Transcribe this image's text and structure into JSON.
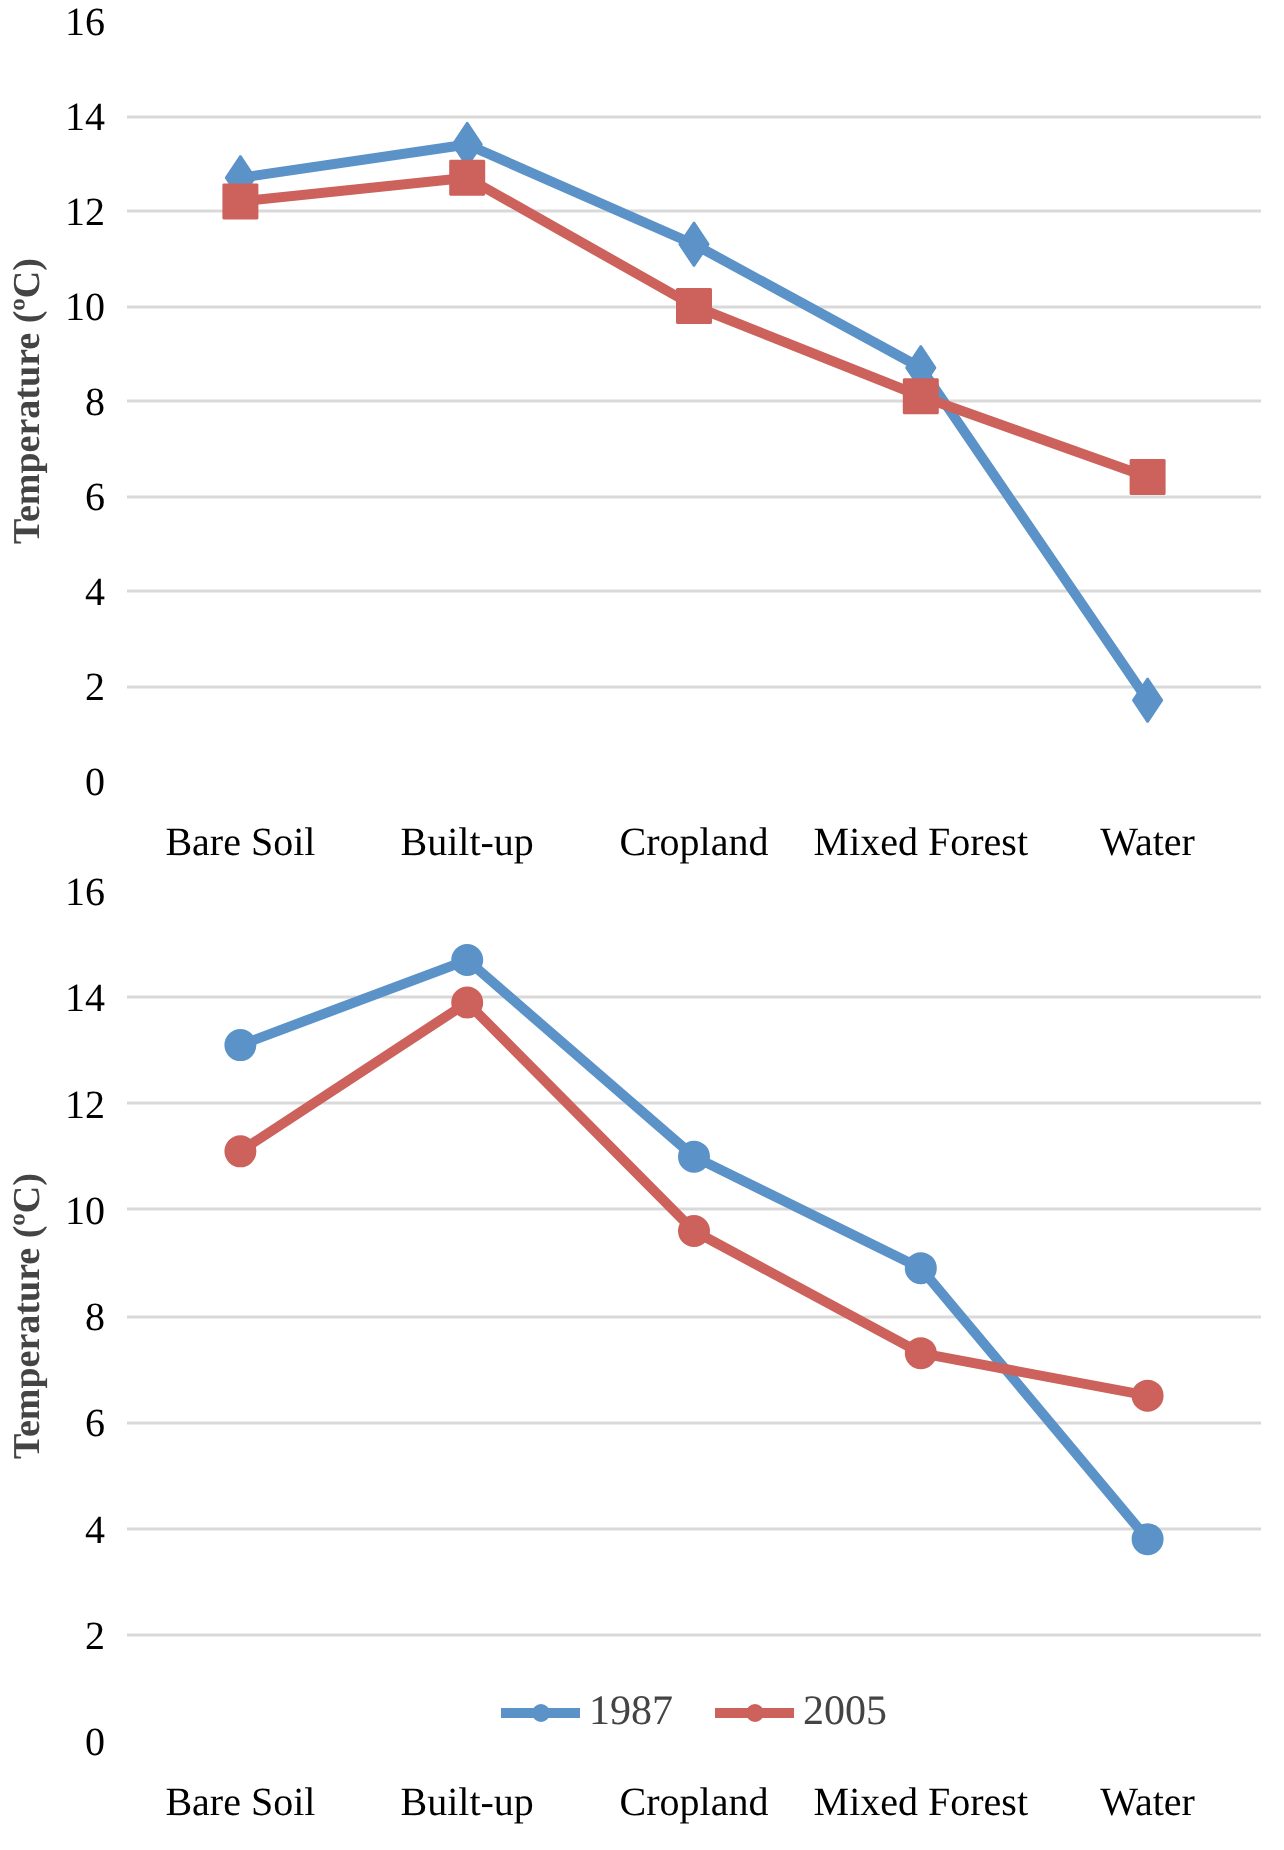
{
  "chart_data": [
    {
      "type": "line",
      "ylabel": "Temperature (ºC)",
      "categories": [
        "Bare Soil",
        "Built-up",
        "Cropland",
        "Mixed Forest",
        "Water"
      ],
      "ylim": [
        0,
        16
      ],
      "yticks": [
        0,
        2,
        4,
        6,
        8,
        10,
        12,
        14,
        16
      ],
      "grid": "y",
      "legend": false,
      "series": [
        {
          "color": "#5b93c8",
          "marker": "diamond",
          "values": [
            12.7,
            13.4,
            11.3,
            8.7,
            1.7
          ]
        },
        {
          "color": "#cc625b",
          "marker": "square",
          "values": [
            12.2,
            12.7,
            10.0,
            8.1,
            6.4
          ]
        }
      ]
    },
    {
      "type": "line",
      "ylabel": "Temperature (ºC)",
      "categories": [
        "Bare Soil",
        "Built-up",
        "Cropland",
        "Mixed Forest",
        "Water"
      ],
      "ylim": [
        0,
        16
      ],
      "yticks": [
        0,
        2,
        4,
        6,
        8,
        10,
        12,
        14,
        16
      ],
      "grid": "y",
      "legend": "bottom",
      "marker": "circle",
      "series": [
        {
          "name": "1987",
          "color": "#5b93c8",
          "values": [
            13.1,
            14.7,
            11.0,
            8.9,
            3.8
          ]
        },
        {
          "name": "2005",
          "color": "#cc625b",
          "values": [
            11.1,
            13.9,
            9.6,
            7.3,
            6.5
          ]
        }
      ]
    }
  ]
}
